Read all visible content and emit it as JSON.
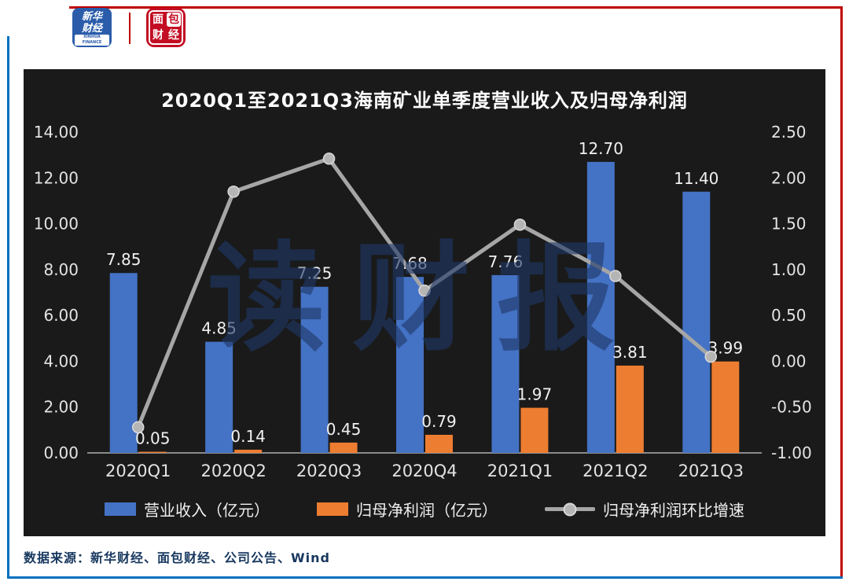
{
  "brand": {
    "frame_top_color": "#c00000",
    "frame_side_color": "#0070c0",
    "xinhua_logo": {
      "line1": "新华",
      "line2": "财经",
      "subtext": "XINHUA FINANCE",
      "bg_color": "#2a5caa"
    },
    "bread_logo": {
      "chars": [
        "面",
        "包",
        "财",
        "经"
      ],
      "bg_color": "#c30d23"
    }
  },
  "chart_data": {
    "type": "combo-bar-line",
    "title": "2020Q1至2021Q3海南矿业单季度营业收入及归母净利润",
    "background": "#1a1a1a",
    "grid": false,
    "legend_position": "bottom",
    "watermark": "读财报",
    "categories": [
      "2020Q1",
      "2020Q2",
      "2020Q3",
      "2020Q4",
      "2021Q1",
      "2021Q2",
      "2021Q3"
    ],
    "series": [
      {
        "name": "营业收入（亿元）",
        "type": "bar",
        "axis": "left",
        "color": "#4472c4",
        "values": [
          7.85,
          4.85,
          7.25,
          7.68,
          7.76,
          12.7,
          11.4
        ],
        "labels": [
          "7.85",
          "4.85",
          "7.25",
          "7.68",
          "7.76",
          "12.70",
          "11.40"
        ]
      },
      {
        "name": "归母净利润（亿元）",
        "type": "bar",
        "axis": "left",
        "color": "#ed7d31",
        "values": [
          0.05,
          0.14,
          0.45,
          0.79,
          1.97,
          3.81,
          3.99
        ],
        "labels": [
          "0.05",
          "0.14",
          "0.45",
          "0.79",
          "1.97",
          "3.81",
          "3.99"
        ]
      },
      {
        "name": "归母净利润环比增速",
        "type": "line",
        "axis": "right",
        "color": "#a6a6a6",
        "values": [
          -0.72,
          1.85,
          2.21,
          0.77,
          1.49,
          0.93,
          0.05
        ],
        "labels": []
      }
    ],
    "left_axis": {
      "min": 0,
      "max": 14,
      "labels": [
        "14.00",
        "12.00",
        "10.00",
        "8.00",
        "6.00",
        "4.00",
        "2.00",
        "0.00"
      ]
    },
    "right_axis": {
      "min": -1,
      "max": 2.5,
      "labels": [
        "2.50",
        "2.00",
        "1.50",
        "1.00",
        "0.50",
        "0.00",
        "-0.50",
        "-1.00"
      ]
    }
  },
  "footer": {
    "source_text": "数据来源：新华财经、面包财经、公司公告、Wind"
  }
}
